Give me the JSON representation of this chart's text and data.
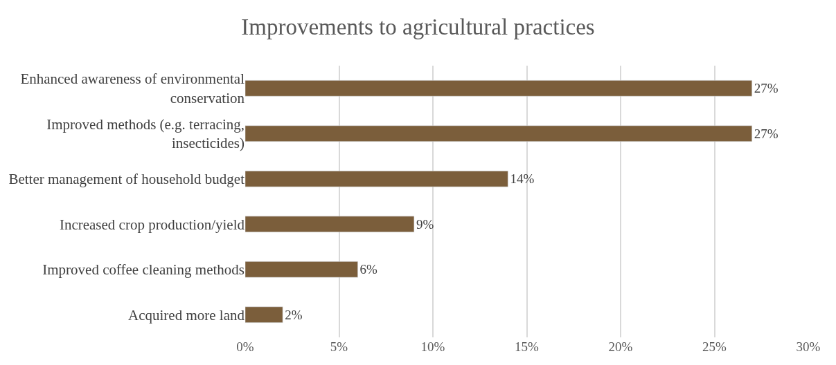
{
  "chart_data": {
    "type": "bar",
    "orientation": "horizontal",
    "title": "Improvements to agricultural practices",
    "categories": [
      "Enhanced awareness of environmental conservation",
      "Improved methods (e.g. terracing, insecticides)",
      "Better management of household budget",
      "Increased crop production/yield",
      "Improved coffee cleaning methods",
      "Acquired more land"
    ],
    "values": [
      27,
      27,
      14,
      9,
      6,
      2
    ],
    "value_labels": [
      "27%",
      "27%",
      "14%",
      "9%",
      "6%",
      "2%"
    ],
    "color": "#7b5e3b",
    "xlim": [
      0,
      30
    ],
    "xticks": [
      {
        "value": 0,
        "label": "0%"
      },
      {
        "value": 5,
        "label": "5%"
      },
      {
        "value": 10,
        "label": "10%"
      },
      {
        "value": 15,
        "label": "15%"
      },
      {
        "value": 20,
        "label": "20%"
      },
      {
        "value": 25,
        "label": "25%"
      },
      {
        "value": 30,
        "label": "30%"
      }
    ],
    "grid": "x"
  }
}
